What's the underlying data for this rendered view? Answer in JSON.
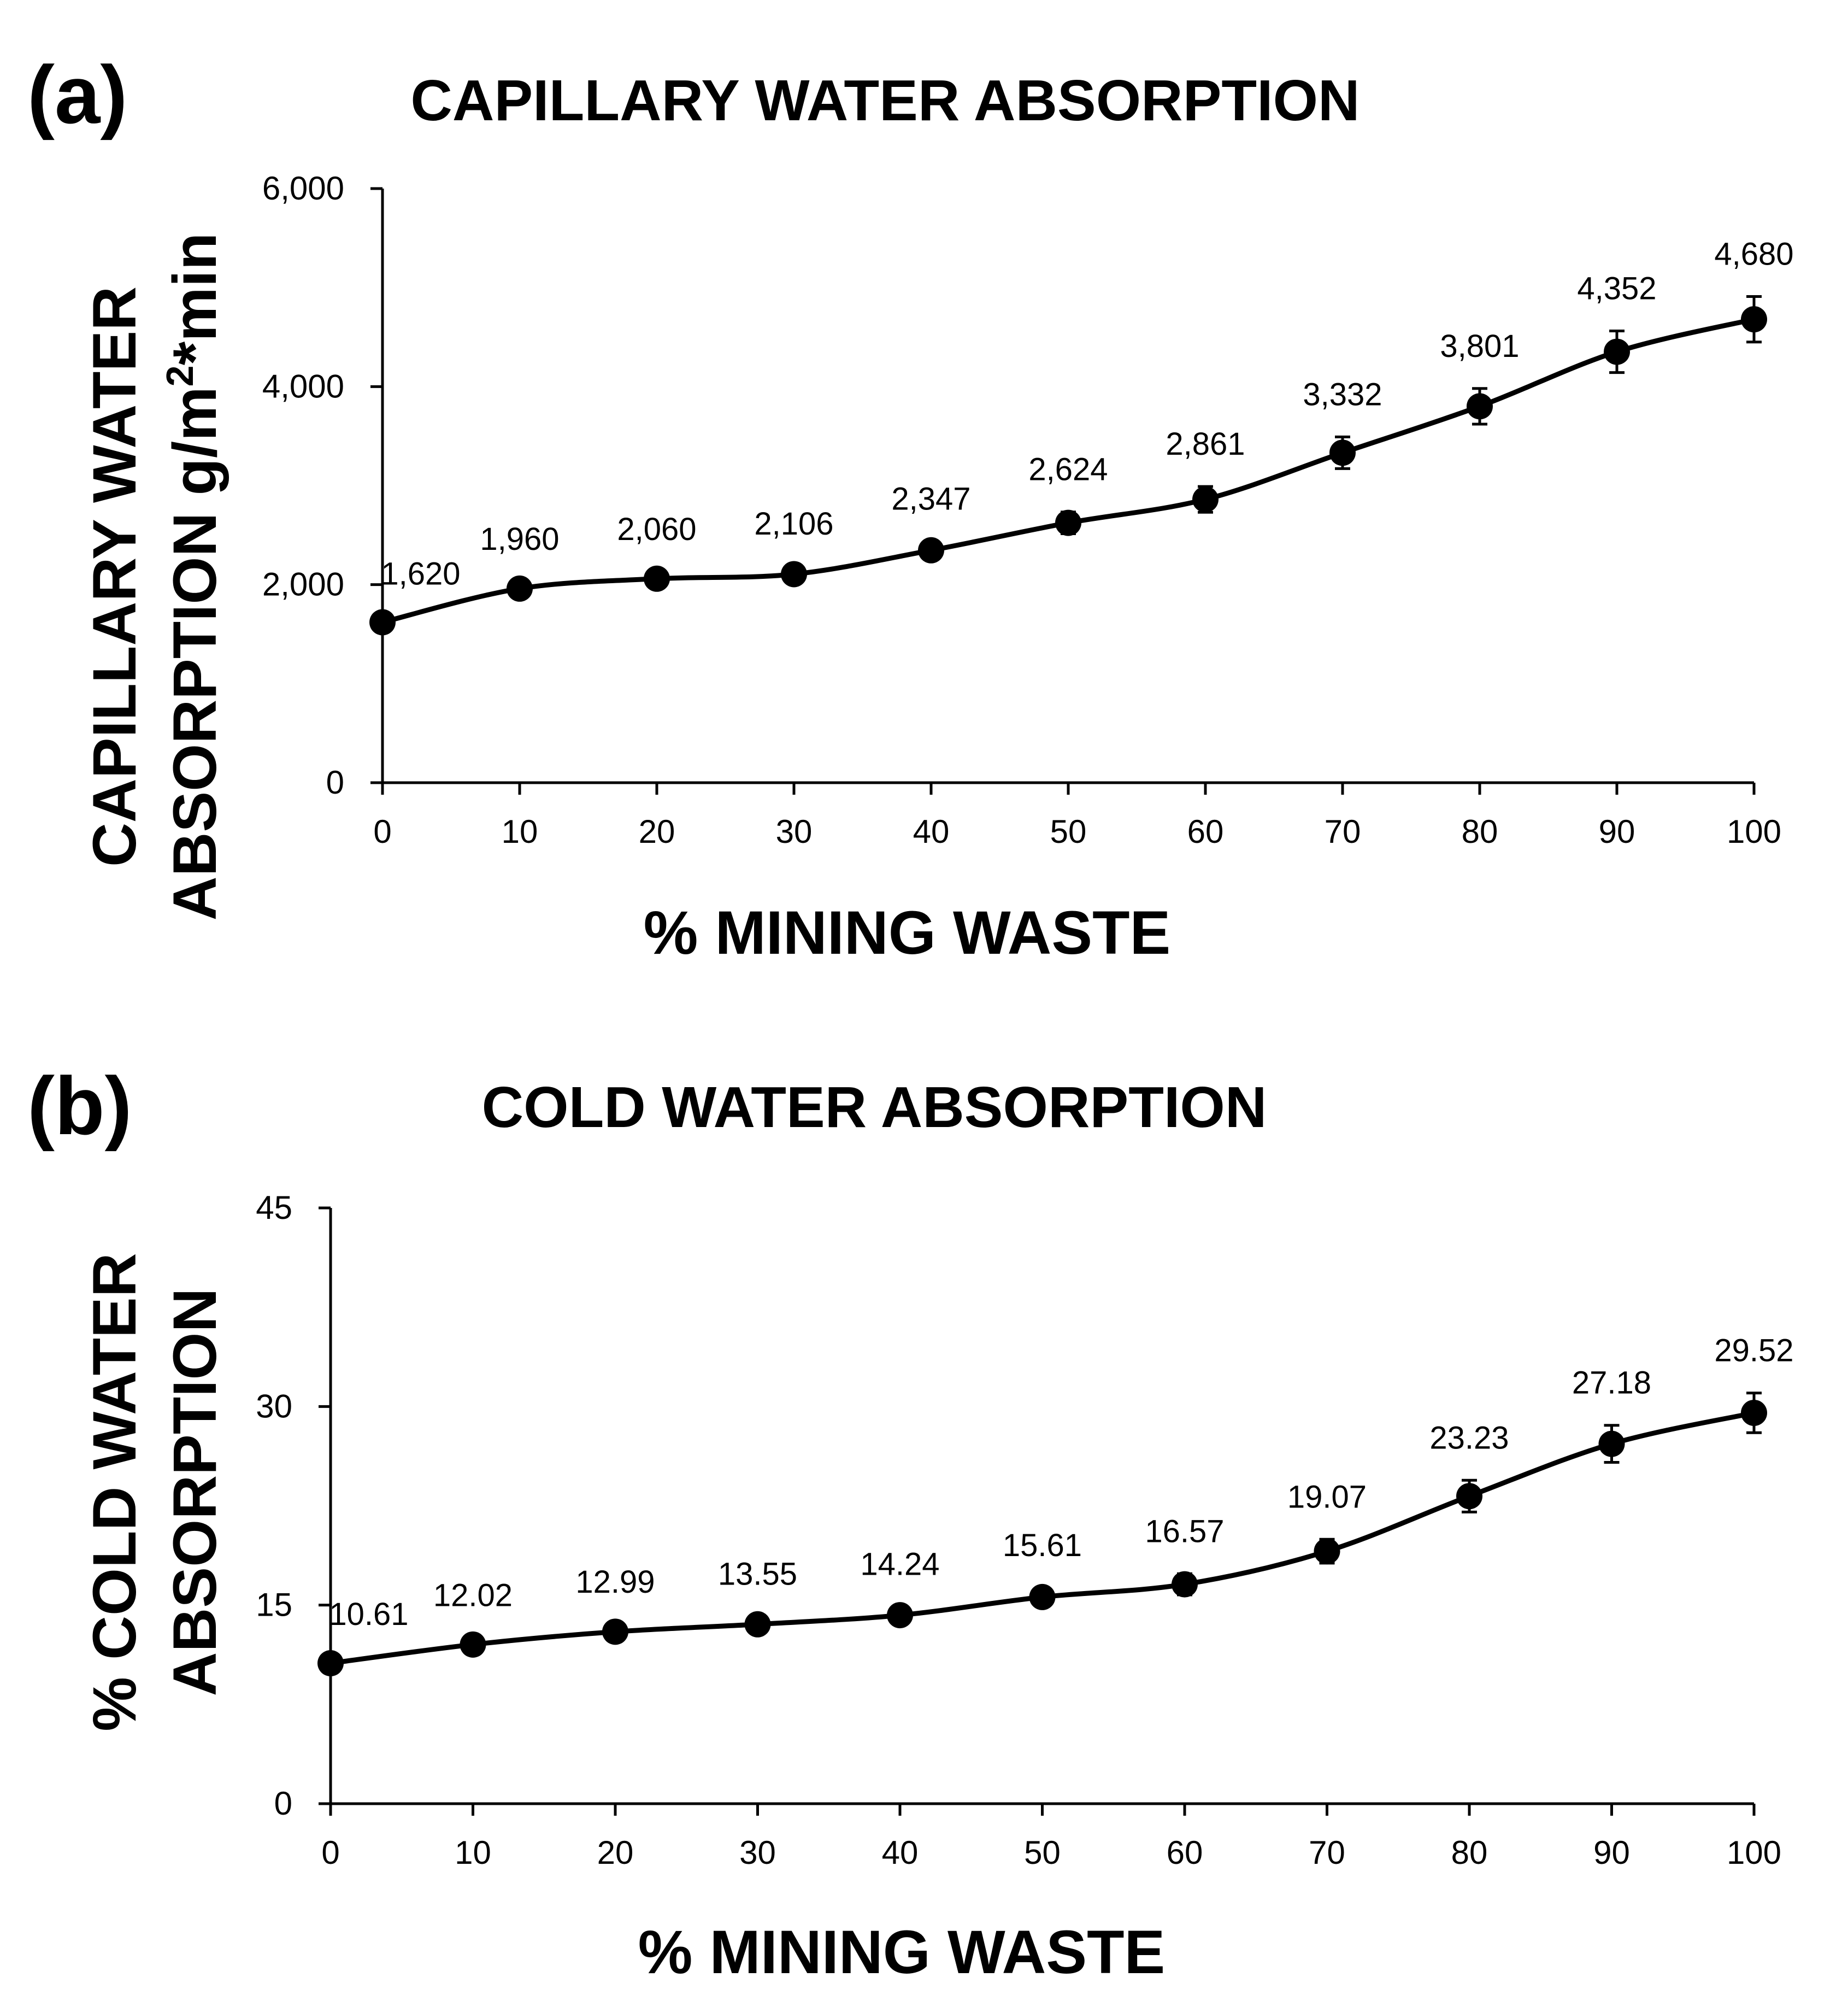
{
  "chart_data": [
    {
      "id": "a",
      "panel_label": "(a)",
      "type": "line",
      "title": "CAPILLARY WATER ABSORPTION",
      "xlabel": "% MINING WASTE",
      "ylabel_line1": "CAPILLARY WATER",
      "ylabel_line2_main": "ABSORPTION g/m",
      "ylabel_sup": "2",
      "ylabel_line2_tail": "*min",
      "xlim": [
        0,
        100
      ],
      "ylim": [
        0,
        6000
      ],
      "x": [
        0,
        10,
        20,
        30,
        40,
        50,
        60,
        70,
        80,
        90,
        100
      ],
      "x_tick_labels": [
        "0",
        "10",
        "20",
        "30",
        "40",
        "50",
        "60",
        "70",
        "80",
        "90",
        "100"
      ],
      "y_ticks": [
        0,
        2000,
        4000,
        6000
      ],
      "y_tick_labels": [
        "0",
        "2,000",
        "4,000",
        "6,000"
      ],
      "values": [
        1620,
        1960,
        2060,
        2106,
        2347,
        2624,
        2861,
        3332,
        3801,
        4352,
        4680
      ],
      "data_labels": [
        "1,620",
        "1,960",
        "2,060",
        "2,106",
        "2,347",
        "2,624",
        "2,861",
        "3,332",
        "3,801",
        "4,352",
        "4,680"
      ],
      "errors": [
        60,
        70,
        70,
        80,
        90,
        110,
        130,
        160,
        180,
        210,
        230
      ],
      "grid": false,
      "legend": "none"
    },
    {
      "id": "b",
      "panel_label": "(b)",
      "type": "line",
      "title": "COLD WATER ABSORPTION",
      "xlabel": "% MINING WASTE",
      "ylabel_line1": "% COLD WATER",
      "ylabel_line2_main": "ABSORPTION",
      "ylabel_sup": "",
      "ylabel_line2_tail": "",
      "xlim": [
        0,
        100
      ],
      "ylim": [
        0,
        45
      ],
      "x": [
        0,
        10,
        20,
        30,
        40,
        50,
        60,
        70,
        80,
        90,
        100
      ],
      "x_tick_labels": [
        "0",
        "10",
        "20",
        "30",
        "40",
        "50",
        "60",
        "70",
        "80",
        "90",
        "100"
      ],
      "y_ticks": [
        0,
        15,
        30,
        45
      ],
      "y_tick_labels": [
        "0",
        "15",
        "30",
        "45"
      ],
      "values": [
        10.61,
        12.02,
        12.99,
        13.55,
        14.24,
        15.61,
        16.57,
        19.07,
        23.23,
        27.18,
        29.52
      ],
      "data_labels": [
        "10.61",
        "12.02",
        "12.99",
        "13.55",
        "14.24",
        "15.61",
        "16.57",
        "19.07",
        "23.23",
        "27.18",
        "29.52"
      ],
      "errors": [
        0.5,
        0.5,
        0.55,
        0.6,
        0.65,
        0.7,
        0.8,
        0.9,
        1.2,
        1.4,
        1.5
      ],
      "grid": false,
      "legend": "none"
    }
  ]
}
